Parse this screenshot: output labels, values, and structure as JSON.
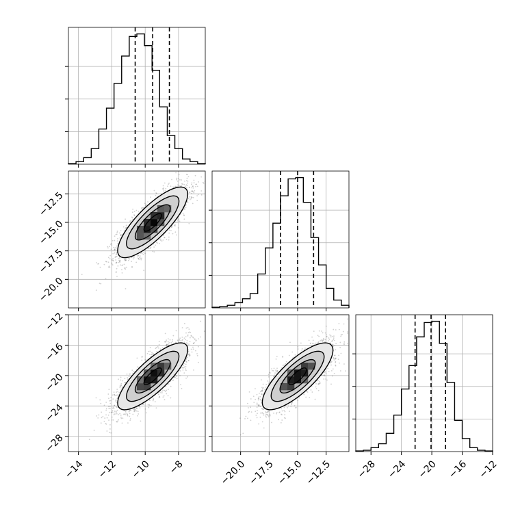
{
  "chart_data": {
    "type": "corner",
    "title": "",
    "parameters": [
      {
        "name": "",
        "hist_range": [
          -14.6,
          -6.4
        ],
        "hist_ymax": 1.05,
        "hist": [
          0.005,
          0.02,
          0.05,
          0.12,
          0.27,
          0.43,
          0.62,
          0.83,
          0.98,
          1.0,
          0.91,
          0.72,
          0.44,
          0.22,
          0.12,
          0.04,
          0.02,
          0.005
        ],
        "quantiles": [
          -10.6,
          -9.55,
          -8.55
        ],
        "ticks": [
          -14,
          -12,
          -10,
          -8
        ],
        "tick_labels": [
          "−14",
          "−12",
          "−10",
          "−8"
        ]
      },
      {
        "name": "",
        "hist_range": [
          -22.5,
          -10.5
        ],
        "hist_ymax": 1.05,
        "hist": [
          0.005,
          0.01,
          0.02,
          0.04,
          0.07,
          0.11,
          0.26,
          0.46,
          0.65,
          0.86,
          0.99,
          1.0,
          0.81,
          0.54,
          0.33,
          0.15,
          0.06,
          0.02
        ],
        "quantiles": [
          -16.5,
          -15.0,
          -13.6
        ],
        "ticks": [
          -20.0,
          -17.5,
          -15.0,
          -12.5
        ],
        "tick_labels": [
          "−20.0",
          "−17.5",
          "−15.0",
          "−12.5"
        ]
      },
      {
        "name": "",
        "hist_range": [
          -30.0,
          -12.0
        ],
        "hist_ymax": 1.05,
        "hist": [
          0.005,
          0.01,
          0.03,
          0.06,
          0.14,
          0.28,
          0.48,
          0.66,
          0.88,
          0.99,
          1.0,
          0.83,
          0.53,
          0.24,
          0.1,
          0.03,
          0.01,
          0.005
        ],
        "quantiles": [
          -22.2,
          -20.1,
          -18.2
        ],
        "ticks": [
          -28,
          -24,
          -20,
          -16,
          -12
        ],
        "tick_labels": [
          "−28",
          "−24",
          "−20",
          "−16",
          "−12"
        ]
      }
    ],
    "correlation_panels": [
      {
        "x_param": 0,
        "y_param": 1,
        "center": [
          -9.55,
          -15.0
        ],
        "sigma": [
          1.05,
          1.55
        ],
        "correlation": 0.8,
        "density_grid_bins": 20,
        "contour_levels": [
          0.5,
          1.0,
          1.5,
          2.0
        ],
        "sample_count": 2600
      },
      {
        "x_param": 0,
        "y_param": 2,
        "center": [
          -9.55,
          -20.1
        ],
        "sigma": [
          1.05,
          2.2
        ],
        "correlation": 0.8,
        "density_grid_bins": 20,
        "contour_levels": [
          0.5,
          1.0,
          1.5,
          2.0
        ],
        "sample_count": 2600
      },
      {
        "x_param": 1,
        "y_param": 2,
        "center": [
          -15.0,
          -20.1
        ],
        "sigma": [
          1.55,
          2.2
        ],
        "correlation": 0.78,
        "density_grid_bins": 20,
        "contour_levels": [
          0.5,
          1.0,
          1.5,
          2.0
        ],
        "sample_count": 2600
      }
    ],
    "grid": true,
    "colors": {
      "line": "#000000",
      "grid": "#b0b0b0",
      "points": "#555555",
      "fill_light": "#e8e8e8",
      "fill_mid": "#a9a9a9",
      "fill_dark": "#1a1a1a"
    }
  }
}
